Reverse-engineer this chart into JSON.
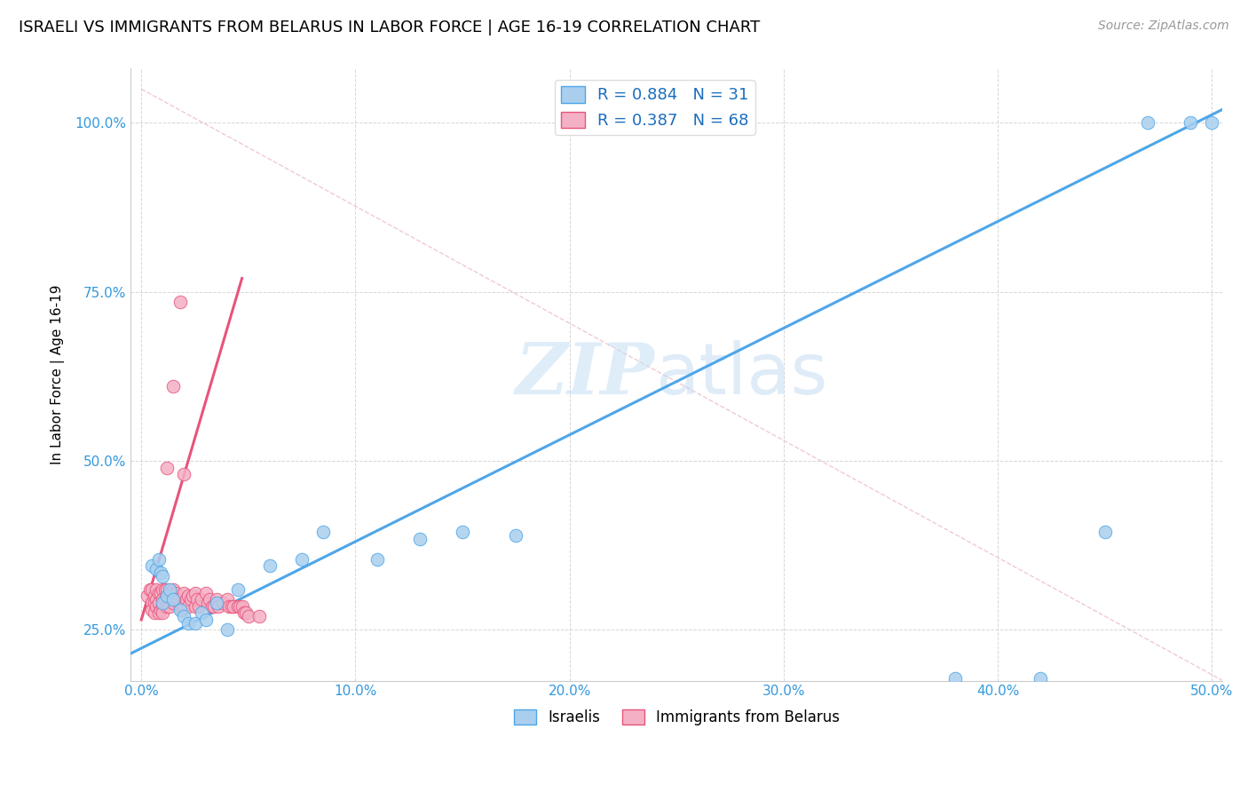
{
  "title": "ISRAELI VS IMMIGRANTS FROM BELARUS IN LABOR FORCE | AGE 16-19 CORRELATION CHART",
  "source": "Source: ZipAtlas.com",
  "ylabel": "In Labor Force | Age 16-19",
  "xlim": [
    -0.005,
    0.505
  ],
  "ylim": [
    0.175,
    1.08
  ],
  "yticks": [
    0.25,
    0.5,
    0.75,
    1.0
  ],
  "xticks": [
    0.0,
    0.1,
    0.2,
    0.3,
    0.4,
    0.5
  ],
  "blue_color": "#aacfee",
  "pink_color": "#f4b0c5",
  "blue_line_color": "#4da6e8",
  "pink_line_color": "#e8547a",
  "ref_line_color": "#d0d0d0",
  "blue_R": 0.884,
  "blue_N": 31,
  "pink_R": 0.387,
  "pink_N": 68,
  "legend_label_blue": "Israelis",
  "legend_label_pink": "Immigrants from Belarus",
  "watermark_zip": "ZIP",
  "watermark_atlas": "atlas",
  "blue_line_x": [
    -0.005,
    0.505
  ],
  "blue_line_y": [
    0.215,
    1.02
  ],
  "pink_line_x": [
    0.0,
    0.047
  ],
  "pink_line_y": [
    0.265,
    0.77
  ],
  "ref_line_x": [
    0.0,
    0.505
  ],
  "ref_line_y": [
    1.05,
    0.175
  ],
  "blue_scatter_x": [
    0.005,
    0.007,
    0.008,
    0.009,
    0.01,
    0.01,
    0.012,
    0.013,
    0.015,
    0.018,
    0.02,
    0.022,
    0.025,
    0.028,
    0.03,
    0.035,
    0.04,
    0.045,
    0.06,
    0.075,
    0.085,
    0.11,
    0.13,
    0.15,
    0.175,
    0.38,
    0.42,
    0.45,
    0.47,
    0.49,
    0.5
  ],
  "blue_scatter_y": [
    0.345,
    0.34,
    0.355,
    0.335,
    0.33,
    0.29,
    0.3,
    0.31,
    0.295,
    0.28,
    0.27,
    0.26,
    0.26,
    0.275,
    0.265,
    0.29,
    0.25,
    0.31,
    0.345,
    0.355,
    0.395,
    0.355,
    0.385,
    0.395,
    0.39,
    0.178,
    0.178,
    0.395,
    1.0,
    1.0,
    1.0
  ],
  "pink_scatter_x": [
    0.003,
    0.004,
    0.005,
    0.005,
    0.005,
    0.006,
    0.006,
    0.006,
    0.007,
    0.007,
    0.007,
    0.008,
    0.008,
    0.008,
    0.009,
    0.009,
    0.01,
    0.01,
    0.01,
    0.01,
    0.011,
    0.011,
    0.012,
    0.012,
    0.013,
    0.013,
    0.014,
    0.015,
    0.015,
    0.016,
    0.017,
    0.018,
    0.019,
    0.02,
    0.02,
    0.021,
    0.022,
    0.022,
    0.023,
    0.024,
    0.025,
    0.025,
    0.026,
    0.027,
    0.028,
    0.03,
    0.031,
    0.032,
    0.033,
    0.034,
    0.035,
    0.036,
    0.038,
    0.04,
    0.041,
    0.042,
    0.043,
    0.045,
    0.046,
    0.047,
    0.048,
    0.049,
    0.05,
    0.055,
    0.018,
    0.015,
    0.012,
    0.02
  ],
  "pink_scatter_y": [
    0.3,
    0.31,
    0.31,
    0.29,
    0.28,
    0.3,
    0.29,
    0.275,
    0.31,
    0.295,
    0.285,
    0.305,
    0.29,
    0.275,
    0.305,
    0.28,
    0.31,
    0.295,
    0.285,
    0.275,
    0.31,
    0.295,
    0.31,
    0.285,
    0.305,
    0.285,
    0.295,
    0.31,
    0.29,
    0.305,
    0.295,
    0.285,
    0.28,
    0.305,
    0.285,
    0.295,
    0.3,
    0.285,
    0.295,
    0.3,
    0.305,
    0.285,
    0.295,
    0.285,
    0.295,
    0.305,
    0.29,
    0.295,
    0.285,
    0.285,
    0.295,
    0.285,
    0.29,
    0.295,
    0.285,
    0.285,
    0.285,
    0.285,
    0.285,
    0.285,
    0.275,
    0.275,
    0.27,
    0.27,
    0.735,
    0.61,
    0.49,
    0.48
  ]
}
